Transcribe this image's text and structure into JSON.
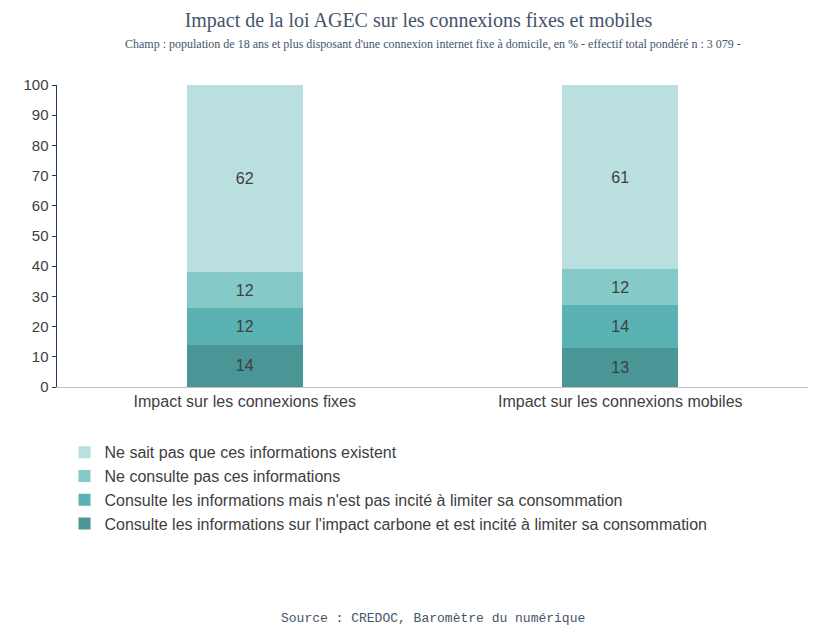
{
  "chart_data": {
    "type": "bar",
    "title": "Impact de la loi AGEC sur les connexions fixes et mobiles",
    "subtitle": "Champ : population de 18 ans et plus disposant d'une connexion internet fixe à domicile, en % - effectif total pondéré n : 3 079 -",
    "source": "Source : CREDOC, Baromètre du numérique",
    "categories": [
      "Impact sur les connexions fixes",
      "Impact sur les connexions mobiles"
    ],
    "series": [
      {
        "name": "Consulte les informations sur l'impact carbone et est incité à limiter sa consommation",
        "color": "#4a9696",
        "values": [
          14,
          13
        ]
      },
      {
        "name": "Consulte les informations mais n'est pas incité à limiter sa consommation",
        "color": "#5bb2b2",
        "values": [
          12,
          14
        ]
      },
      {
        "name": "Ne consulte pas ces informations",
        "color": "#86c9c9",
        "values": [
          12,
          12
        ]
      },
      {
        "name": "Ne sait pas que ces informations existent",
        "color": "#b9dfdf",
        "values": [
          62,
          61
        ]
      }
    ],
    "ylim": [
      0,
      100
    ],
    "yticks": [
      0,
      10,
      20,
      30,
      40,
      50,
      60,
      70,
      80,
      90,
      100
    ],
    "stacked": true,
    "data_labels": true,
    "grid": false,
    "legend": "bottom"
  }
}
